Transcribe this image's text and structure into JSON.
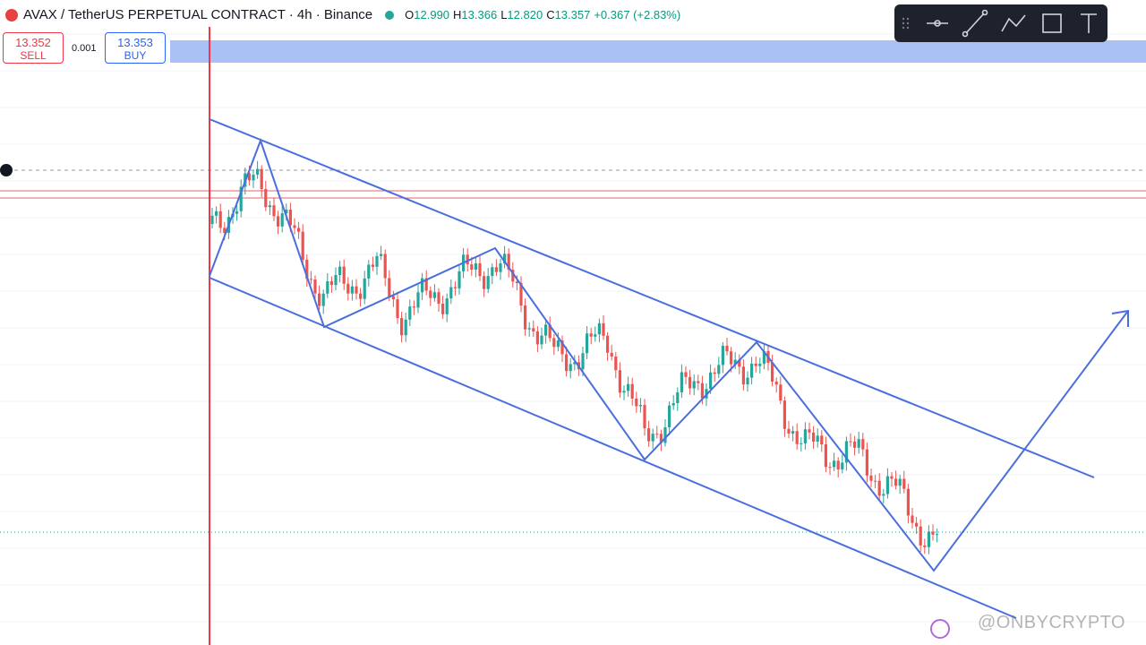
{
  "header": {
    "symbol": "AVAX / TetherUS PERPETUAL CONTRACT · 4h · Binance",
    "ohlc": [
      {
        "key": "O",
        "value": "12.990"
      },
      {
        "key": "H",
        "value": "13.366"
      },
      {
        "key": "L",
        "value": "12.820"
      },
      {
        "key": "C",
        "value": "13.357"
      }
    ],
    "change": "+0.367 (+2.83%)"
  },
  "trade": {
    "sell_price": "13.352",
    "sell_label": "SELL",
    "spread": "0.001",
    "buy_price": "13.353",
    "buy_label": "BUY"
  },
  "watermark": "@ONBYCRYPTO"
}
